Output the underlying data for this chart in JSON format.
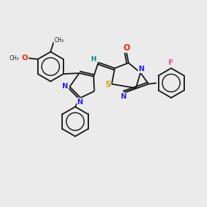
{
  "bg_color": "#ebebeb",
  "bond_color": "#1a1a1a",
  "atom_colors": {
    "O": "#ff2200",
    "N": "#2222ff",
    "S": "#ccaa00",
    "F": "#ff44aa",
    "H": "#008b8b",
    "C": "#1a1a1a"
  },
  "font_size": 7.5,
  "figsize": [
    3.0,
    3.0
  ],
  "dpi": 100
}
